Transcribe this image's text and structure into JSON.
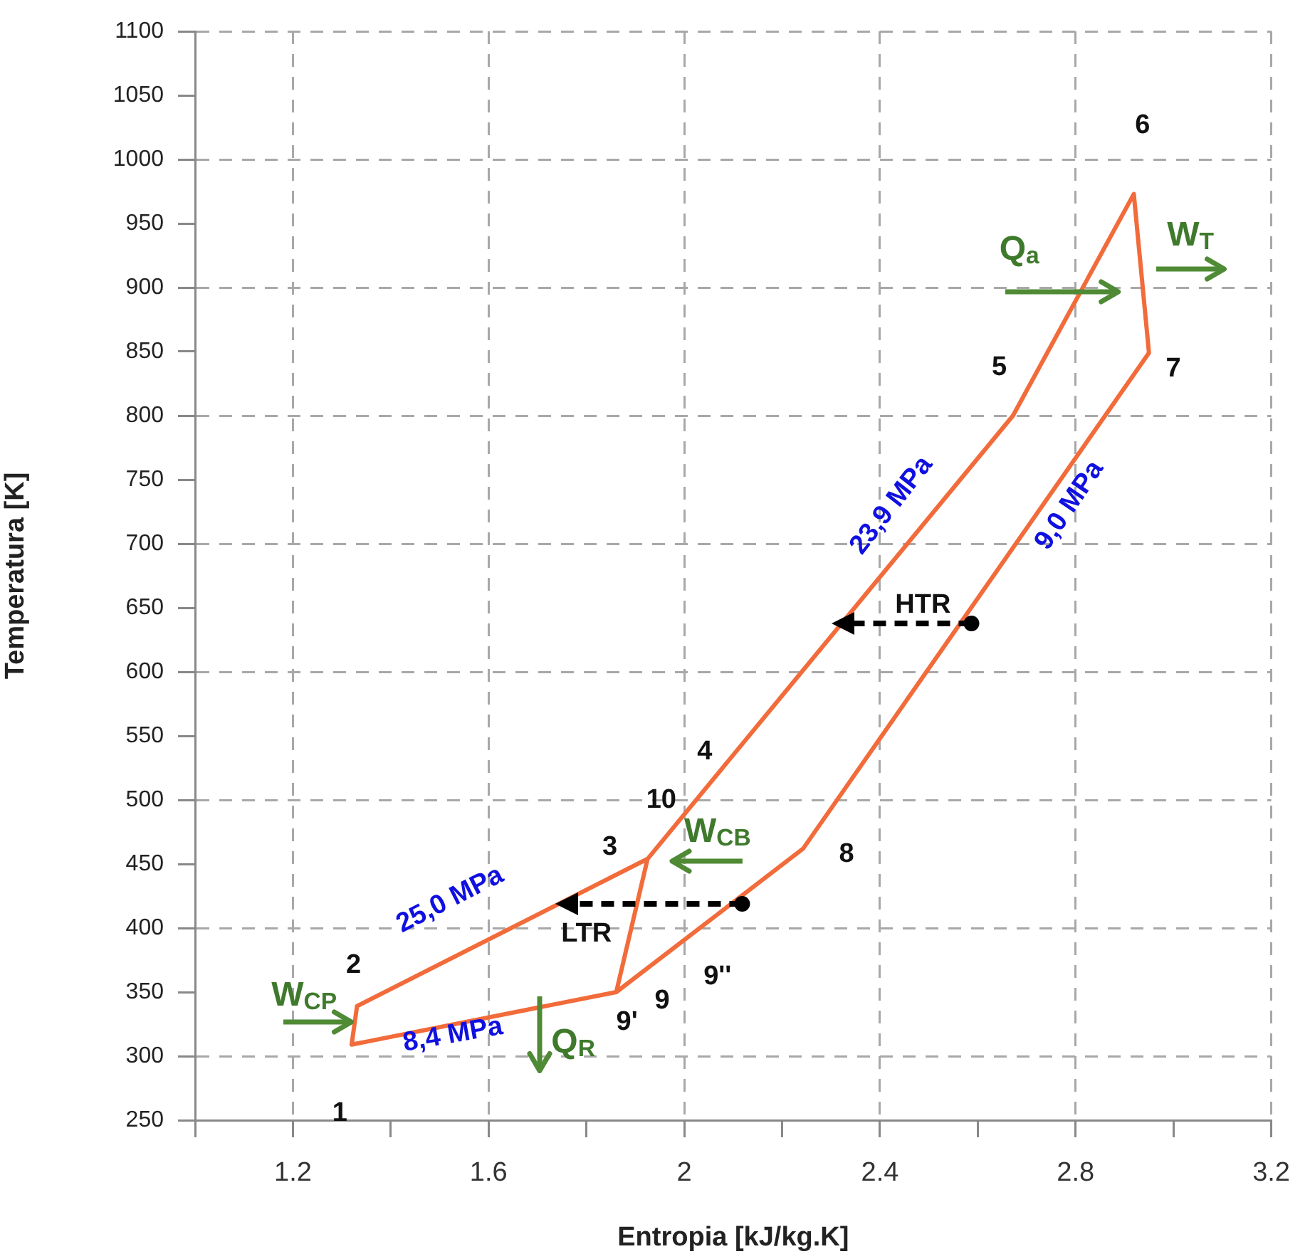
{
  "chart_data": {
    "type": "line",
    "xlabel": "Entropia [kJ/kg.K]",
    "ylabel": "Temperatura [K]",
    "xlim": [
      1.0,
      3.2
    ],
    "ylim": [
      250,
      1100
    ],
    "xticks": [
      {
        "value": 1.0,
        "label": null
      },
      1.2,
      {
        "value": 1.4,
        "label": null
      },
      1.6,
      {
        "value": 1.8,
        "label": null
      },
      2,
      {
        "value": 2.2,
        "label": null
      },
      2.4,
      {
        "value": 2.6,
        "label": null
      },
      2.8,
      {
        "value": 3.0,
        "label": null
      },
      3.2
    ],
    "yticks": [
      250,
      300,
      350,
      400,
      450,
      500,
      550,
      600,
      650,
      700,
      750,
      800,
      850,
      900,
      950,
      1000,
      1050,
      1100
    ],
    "grid": true,
    "legend": false,
    "marker": "none",
    "line_style": "solid",
    "series": [
      {
        "color": "#f26b3a",
        "x": [
          1.861,
          1.32,
          1.331,
          1.925,
          1.861,
          2.243,
          2.95,
          2.919,
          2.672,
          1.925
        ],
        "values": [
          350,
          309,
          339,
          454,
          350,
          462,
          849,
          973,
          800,
          454
        ]
      }
    ],
    "annotations": [
      "1",
      "2",
      "3",
      "4",
      "10",
      "5",
      "6",
      "7",
      "8",
      "9''",
      "9",
      "9'",
      "25,0 MPa",
      "8,4 MPa",
      "23,9 MPa",
      "9,0 MPa",
      {
        "text": "HTR",
        "x": 2.3,
        "y": 638
      },
      {
        "text": "LTR",
        "x": 1.735,
        "y": 419
      },
      "Q$_{a}$",
      "W$_{T}$",
      "W$_{CP}$",
      "W$_{CB}$",
      "Q$_{R}$"
    ]
  }
}
